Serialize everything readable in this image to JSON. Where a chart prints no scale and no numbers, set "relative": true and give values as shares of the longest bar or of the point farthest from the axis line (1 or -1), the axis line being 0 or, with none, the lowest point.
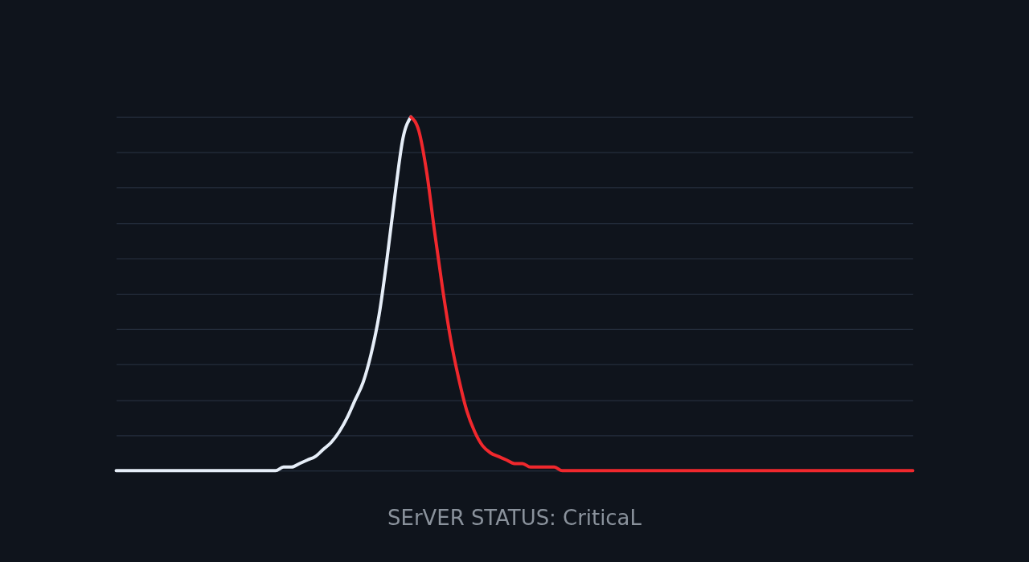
{
  "chart_data": {
    "type": "line",
    "relative": true,
    "grid": "y",
    "marker": "none",
    "line_style": "solid",
    "annotations": [
      "SErVER STATUS: CriticaL"
    ],
    "categories": [
      null,
      null,
      null,
      null,
      null,
      null,
      null,
      null,
      null,
      null,
      null,
      null,
      null,
      null,
      null,
      null,
      null,
      null,
      null,
      null,
      null,
      null,
      null,
      null,
      null,
      null,
      null,
      null,
      null,
      null,
      null,
      null,
      null,
      null,
      null,
      null,
      null,
      null,
      null,
      null,
      null,
      null,
      null,
      null,
      null,
      null,
      null,
      null,
      null,
      null,
      null,
      null,
      null,
      null,
      null,
      null,
      null,
      null,
      null,
      null,
      null,
      null,
      null,
      null,
      null,
      null,
      null,
      null,
      null,
      null,
      null,
      null,
      null,
      null,
      null,
      null,
      null,
      null,
      null,
      null,
      null,
      null,
      null,
      null,
      null,
      null,
      null,
      null,
      null,
      null,
      null,
      null,
      null,
      null,
      null,
      null,
      null,
      null,
      null,
      null,
      null
    ],
    "series": [
      {
        "color": "#e6eef8",
        "values": [
          0,
          0,
          0,
          0,
          0,
          0,
          0,
          0,
          0,
          0,
          0,
          0,
          0,
          0,
          0,
          0,
          0,
          0,
          0,
          0,
          0,
          0.01,
          0.01,
          0.02,
          0.03,
          0.04,
          0.06,
          0.08,
          0.11,
          0.15,
          0.2,
          0.25,
          0.33,
          0.44,
          0.6,
          0.78,
          0.94,
          1,
          null,
          null,
          null,
          null,
          null,
          null,
          null,
          null,
          null,
          null,
          null,
          null,
          null,
          null,
          null,
          null,
          null,
          null,
          null,
          null,
          null,
          null,
          null,
          null,
          null,
          null,
          null,
          null,
          null,
          null,
          null,
          null,
          null,
          null,
          null,
          null,
          null,
          null,
          null,
          null,
          null,
          null,
          null,
          null,
          null,
          null,
          null,
          null,
          null,
          null,
          null,
          null,
          null,
          null,
          null,
          null,
          null,
          null,
          null,
          null,
          null,
          null,
          null
        ]
      },
      {
        "color": "#f0282d",
        "values": [
          null,
          null,
          null,
          null,
          null,
          null,
          null,
          null,
          null,
          null,
          null,
          null,
          null,
          null,
          null,
          null,
          null,
          null,
          null,
          null,
          null,
          null,
          null,
          null,
          null,
          null,
          null,
          null,
          null,
          null,
          null,
          null,
          null,
          null,
          null,
          null,
          null,
          1,
          0.96,
          0.84,
          0.67,
          0.51,
          0.37,
          0.26,
          0.17,
          0.11,
          0.07,
          0.05,
          0.04,
          0.03,
          0.02,
          0.02,
          0.01,
          0.01,
          0.01,
          0.01,
          0,
          0,
          0,
          0,
          0,
          0,
          0,
          0,
          0,
          0,
          0,
          0,
          0,
          0,
          0,
          0,
          0,
          0,
          0,
          0,
          0,
          0,
          0,
          0,
          0,
          0,
          0,
          0,
          0,
          0,
          0,
          0,
          0,
          0,
          0,
          0,
          0,
          0,
          0,
          0,
          0,
          0,
          0,
          0,
          0
        ]
      }
    ]
  }
}
